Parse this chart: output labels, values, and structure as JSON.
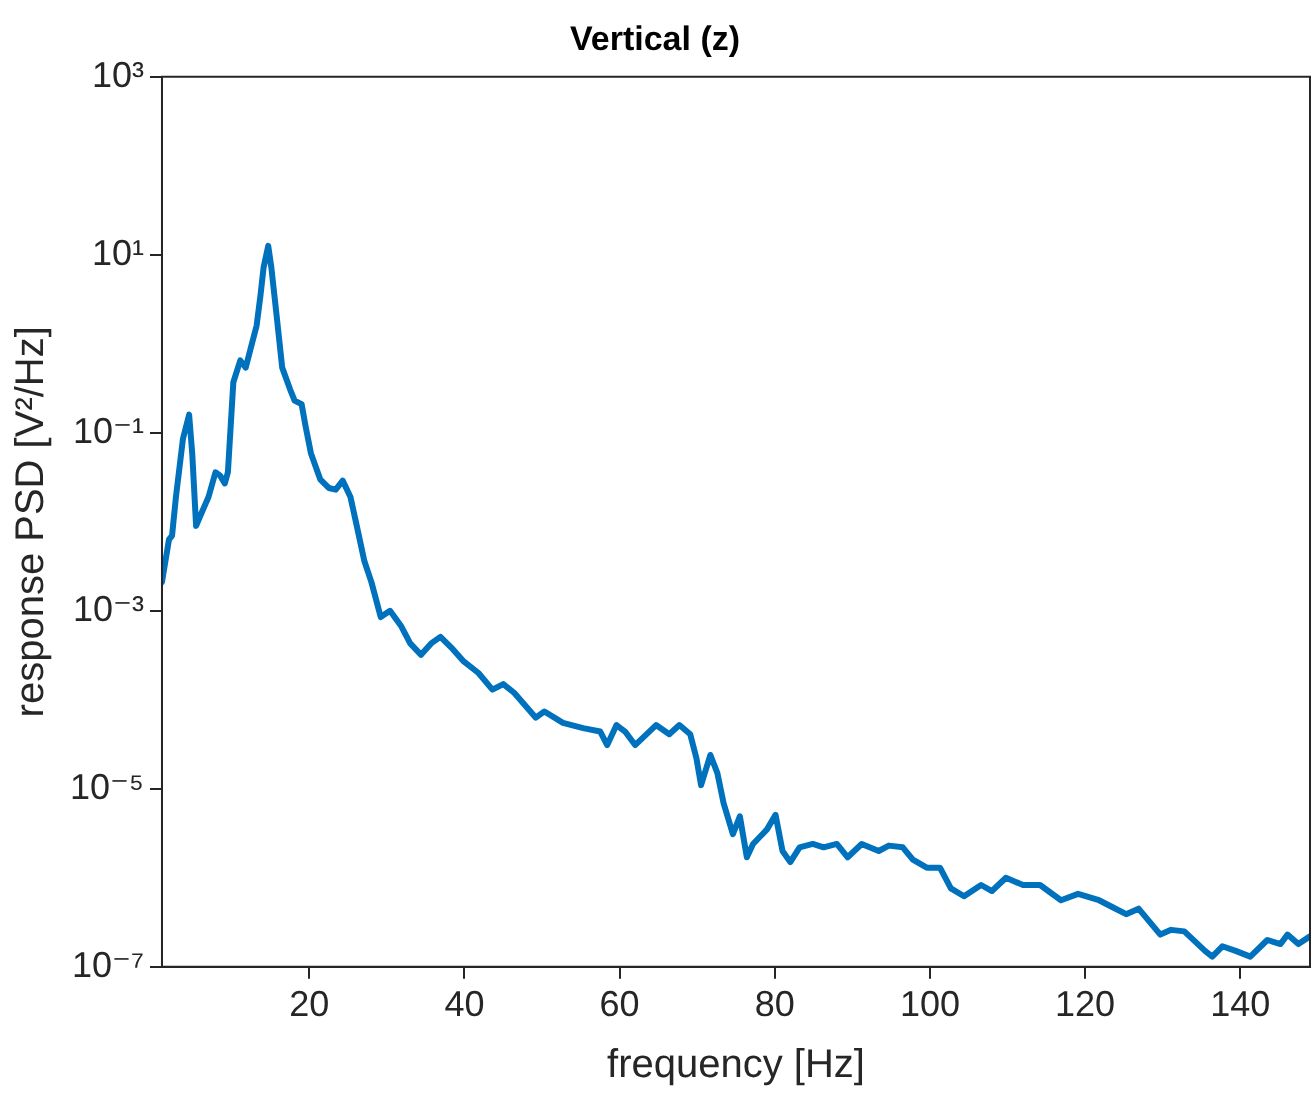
{
  "chart_data": {
    "type": "line",
    "title": "Vertical (z)",
    "xlabel": "frequency [Hz]",
    "ylabel": "response PSD [V²/Hz]",
    "x": [
      1,
      1.9,
      2.3,
      2.8,
      3.7,
      4.5,
      4.9,
      5.4,
      6,
      7,
      7.9,
      8.5,
      9.1,
      9.5,
      10.2,
      11.1,
      11.8,
      12.5,
      13.2,
      13.7,
      14.1,
      14.7,
      15.1,
      15.8,
      16.5,
      17.5,
      18.1,
      19,
      19.5,
      20.2,
      21.4,
      22.5,
      23.4,
      24.3,
      25.3,
      26.2,
      27.1,
      28,
      29.2,
      30.4,
      31.8,
      33,
      34.4,
      35.7,
      36.9,
      38.5,
      39.9,
      41.8,
      43.6,
      45,
      46.4,
      49.2,
      50.3,
      52.7,
      55.3,
      57.5,
      58.4,
      59.6,
      60.7,
      62,
      64.7,
      66.4,
      67.7,
      69.1,
      69.9,
      70.5,
      71.7,
      72.6,
      73.4,
      74.6,
      75.5,
      76.4,
      77.2,
      79,
      80.1,
      81,
      82,
      83.2,
      84.9,
      86.3,
      88,
      89.4,
      91.2,
      93.4,
      94.7,
      96.5,
      97.8,
      99.6,
      101.3,
      102.7,
      104.4,
      106.6,
      108,
      109.8,
      112,
      114.2,
      116.9,
      119.1,
      121.8,
      123.5,
      125.3,
      126.9,
      129.7,
      131.1,
      132.8,
      135.5,
      136.4,
      137.7,
      139.5,
      141.3,
      143.5,
      145.2,
      146.1,
      147.5,
      149
    ],
    "series": [
      {
        "color": "#0072bd",
        "values": [
          0.0021,
          0.0063,
          0.007,
          0.019,
          0.085,
          0.16,
          0.059,
          0.009,
          0.012,
          0.019,
          0.036,
          0.033,
          0.027,
          0.036,
          0.37,
          0.65,
          0.54,
          0.93,
          1.6,
          3.5,
          7.2,
          12.6,
          7.2,
          2.0,
          0.54,
          0.31,
          0.23,
          0.21,
          0.12,
          0.059,
          0.03,
          0.024,
          0.023,
          0.029,
          0.019,
          0.0083,
          0.0036,
          0.0021,
          0.00085,
          0.001,
          0.00068,
          0.00043,
          0.00032,
          0.00043,
          0.00051,
          0.00037,
          0.00027,
          0.0002,
          0.00013,
          0.00015,
          0.00012,
          6.3e-05,
          7.4e-05,
          5.5e-05,
          4.8e-05,
          4.4e-05,
          3.1e-05,
          5.2e-05,
          4.4e-05,
          3.1e-05,
          5.2e-05,
          4.1e-05,
          5.2e-05,
          4.1e-05,
          2.2e-05,
          1.1e-05,
          2.4e-05,
          1.5e-05,
          6.9e-06,
          3.1e-06,
          4.9e-06,
          1.7e-06,
          2.4e-06,
          3.5e-06,
          5.1e-06,
          2e-06,
          1.5e-06,
          2.2e-06,
          2.4e-06,
          2.2e-06,
          2.4e-06,
          1.7e-06,
          2.4e-06,
          2e-06,
          2.3e-06,
          2.2e-06,
          1.6e-06,
          1.3e-06,
          1.3e-06,
          7.6e-07,
          6.2e-07,
          8.3e-07,
          7.1e-07,
          1e-06,
          8.3e-07,
          8.3e-07,
          5.6e-07,
          6.6e-07,
          5.6e-07,
          4.7e-07,
          3.9e-07,
          4.5e-07,
          2.3e-07,
          2.6e-07,
          2.5e-07,
          1.5e-07,
          1.3e-07,
          1.7e-07,
          1.5e-07,
          1.3e-07,
          2e-07,
          1.8e-07,
          2.3e-07,
          1.8e-07,
          2.2e-07
        ]
      }
    ],
    "log": "y",
    "xlim": [
      1,
      149
    ],
    "xticks": [
      20,
      40,
      60,
      80,
      100,
      120,
      140
    ],
    "ylim": [
      1e-07,
      1000
    ],
    "yticks": [
      {
        "value": 1e-07,
        "label": "10⁻⁷"
      },
      {
        "value": 1e-05,
        "label": "10⁻⁵"
      },
      {
        "value": 0.001,
        "label": "10⁻³"
      },
      {
        "value": 0.1,
        "label": "10⁻¹"
      },
      {
        "value": 10,
        "label": "10¹"
      },
      {
        "value": 1000,
        "label": "10³"
      }
    ],
    "grid": false,
    "legend": false,
    "marker": "none",
    "line_style": "solid"
  }
}
